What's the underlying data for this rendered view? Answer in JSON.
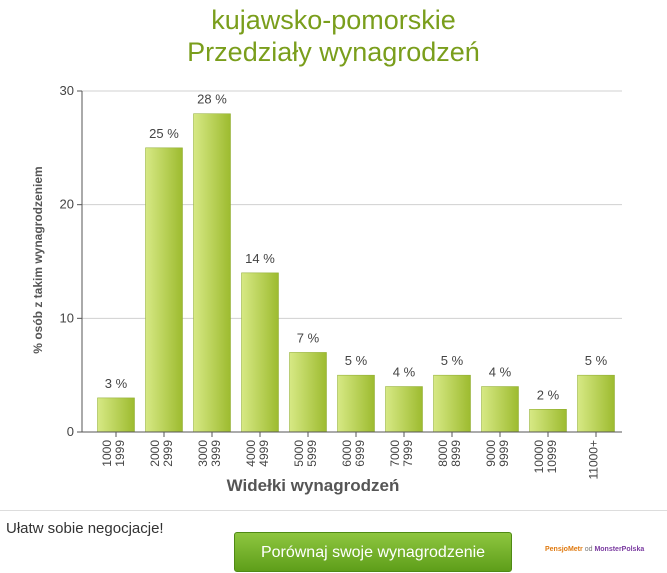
{
  "header": {
    "title": "kujawsko-pomorskie",
    "subtitle": "Przedziały wynagrodzeń"
  },
  "chart_data": {
    "type": "bar",
    "title": "kujawsko-pomorskie",
    "subtitle": "Przedziały wynagrodzeń",
    "xlabel": "Widełki wynagrodzeń",
    "ylabel": "% osób z takim wynagrodzeniem",
    "ylim": [
      0,
      30
    ],
    "yticks": [
      "0",
      "10",
      "20",
      "30"
    ],
    "grid": true,
    "categories": [
      [
        "1000",
        "1999"
      ],
      [
        "2000",
        "2999"
      ],
      [
        "3000",
        "3999"
      ],
      [
        "4000",
        "4999"
      ],
      [
        "5000",
        "5999"
      ],
      [
        "6000",
        "6999"
      ],
      [
        "7000",
        "7999"
      ],
      [
        "8000",
        "8999"
      ],
      [
        "9000",
        "9999"
      ],
      [
        "10000",
        "10999"
      ],
      [
        "11000+"
      ]
    ],
    "values": [
      3,
      25,
      28,
      14,
      7,
      5,
      4,
      5,
      4,
      2,
      5
    ],
    "labels": [
      "3 %",
      "25 %",
      "28 %",
      "14 %",
      "7 %",
      "5 %",
      "4 %",
      "5 %",
      "4 %",
      "2 %",
      "5 %"
    ],
    "colors": {
      "bar_light": "#cde173",
      "bar_dark": "#9dbb2f",
      "title": "#7a9e1c",
      "grid": "#d0d0d0"
    }
  },
  "footer": {
    "prompt": "Ułatw sobie negocjacje!",
    "cta_label": "Porównaj swoje wynagrodzenie",
    "brand_part1": "PensjoMetr",
    "brand_mid": "od",
    "brand_part2": "MonsterPolska"
  }
}
